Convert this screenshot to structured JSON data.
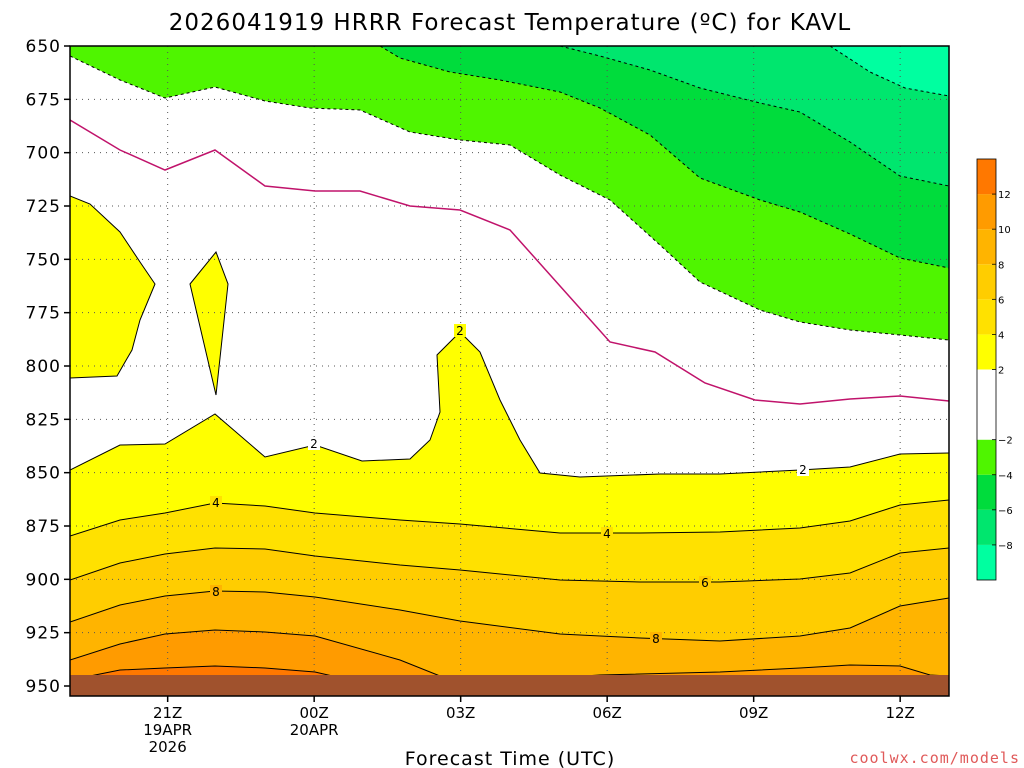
{
  "chart_data": {
    "type": "contour",
    "title": "2026041919 HRRR Forecast Temperature (ºC) for KAVL",
    "xlabel": "Forecast Time (UTC)",
    "ylabel": "",
    "credit": "coolwx.com/models",
    "pressure_axis": {
      "range": [
        650,
        950
      ],
      "ticks": [
        "650",
        "675",
        "700",
        "725",
        "750",
        "775",
        "800",
        "825",
        "850",
        "875",
        "900",
        "925",
        "950"
      ]
    },
    "time_axis": {
      "range_hours": [
        -2,
        16
      ],
      "ticks": [
        {
          "hour": 0,
          "lines": [
            "21Z",
            "19APR",
            "2026"
          ]
        },
        {
          "hour": 3,
          "lines": [
            "00Z",
            "20APR"
          ]
        },
        {
          "hour": 6,
          "lines": [
            "03Z"
          ]
        },
        {
          "hour": 9,
          "lines": [
            "06Z"
          ]
        },
        {
          "hour": 12,
          "lines": [
            "09Z"
          ]
        },
        {
          "hour": 15,
          "lines": [
            "12Z"
          ]
        }
      ]
    },
    "colorbar": {
      "bins": [
        {
          "lo": -10,
          "hi": -8,
          "color": "#00ffa0"
        },
        {
          "lo": -8,
          "hi": -6,
          "color": "#00e66e"
        },
        {
          "lo": -6,
          "hi": -4,
          "color": "#00dc3c"
        },
        {
          "lo": -4,
          "hi": -2,
          "color": "#4ff500"
        },
        {
          "lo": -2,
          "hi": 2,
          "color": "#ffffff"
        },
        {
          "lo": 2,
          "hi": 4,
          "color": "#ffff00"
        },
        {
          "lo": 4,
          "hi": 6,
          "color": "#ffe100"
        },
        {
          "lo": 6,
          "hi": 8,
          "color": "#ffcd00"
        },
        {
          "lo": 8,
          "hi": 10,
          "color": "#ffb400"
        },
        {
          "lo": 10,
          "hi": 12,
          "color": "#ff9b00"
        },
        {
          "lo": 12,
          "hi": 14,
          "color": "#ff7800"
        }
      ],
      "tick_labels": [
        "12",
        "10",
        "8",
        "6",
        "4",
        "2",
        "−2",
        "−4",
        "−6",
        "−8"
      ]
    },
    "contour_labels": [
      "2",
      "2",
      "2",
      "4",
      "4",
      "6",
      "8",
      "8"
    ],
    "colors": {
      "ground": "#a0522d",
      "freezing_line": "#c0136b",
      "contour": "#000000"
    }
  }
}
